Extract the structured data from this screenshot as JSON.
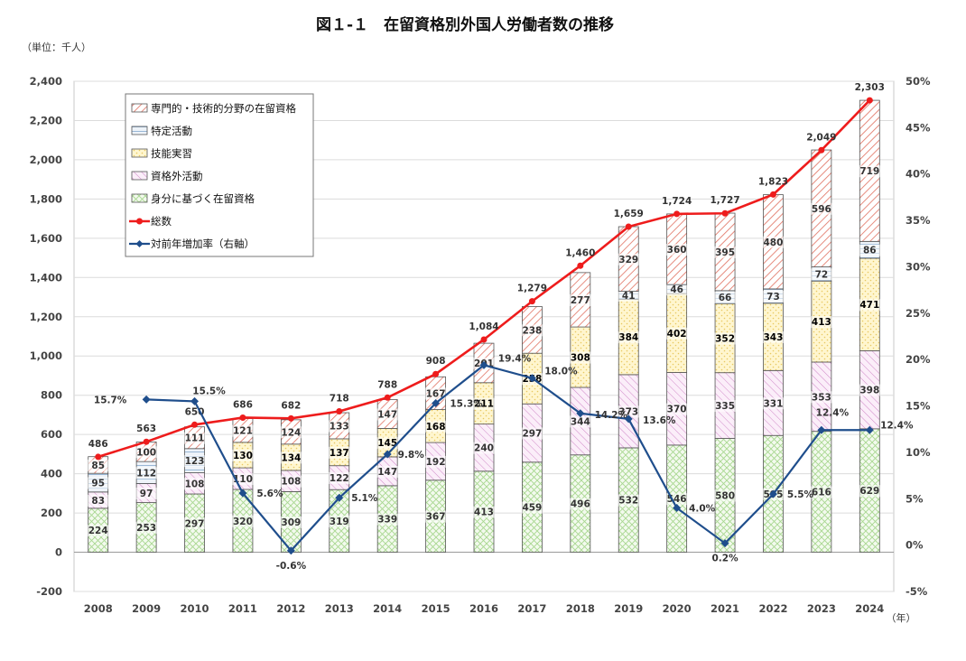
{
  "title": "図１-１　在留資格別外国人労働者数の推移",
  "unit_label": "（単位：千人）",
  "year_unit": "（年）",
  "colors": {
    "professional": "#e07060",
    "designated": "#7aa0c8",
    "trainee": "#e8c860",
    "outside": "#d088c8",
    "status": "#a8d890",
    "total_line": "#ee1c1c",
    "rate_line": "#1f4e8c"
  },
  "chart_data": {
    "type": "bar",
    "categories": [
      "2008",
      "2009",
      "2010",
      "2011",
      "2012",
      "2013",
      "2014",
      "2015",
      "2016",
      "2017",
      "2018",
      "2019",
      "2020",
      "2021",
      "2022",
      "2023",
      "2024"
    ],
    "y_left": {
      "min": -200,
      "max": 2400,
      "step": 200
    },
    "y_right": {
      "min": -5,
      "max": 50,
      "step": 5
    },
    "y_left_ticks": [
      "-200",
      "0",
      "200",
      "400",
      "600",
      "800",
      "1,000",
      "1,200",
      "1,400",
      "1,600",
      "1,800",
      "2,000",
      "2,200",
      "2,400"
    ],
    "y_right_ticks": [
      "-5%",
      "0%",
      "5%",
      "10%",
      "15%",
      "20%",
      "25%",
      "30%",
      "35%",
      "40%",
      "45%",
      "50%"
    ],
    "series": [
      {
        "name": "身分に基づく在留資格",
        "key": "status",
        "values": [
          224,
          253,
          297,
          320,
          309,
          319,
          339,
          367,
          413,
          459,
          496,
          532,
          546,
          580,
          595,
          616,
          629
        ],
        "labels": [
          "224",
          "253",
          "297",
          "320",
          "309",
          "319",
          "339",
          "367",
          "413",
          "459",
          "496",
          "532",
          "546",
          "580",
          "595",
          "616",
          "629"
        ]
      },
      {
        "name": "資格外活動",
        "key": "outside",
        "values": [
          83,
          97,
          108,
          110,
          108,
          122,
          147,
          192,
          240,
          297,
          344,
          373,
          370,
          335,
          331,
          353,
          398
        ],
        "labels": [
          "83",
          "97",
          "108",
          "110",
          "108",
          "122",
          "147",
          "192",
          "240",
          "297",
          "344",
          "373",
          "370",
          "335",
          "331",
          "353",
          "398"
        ]
      },
      {
        "name": "技能実習",
        "key": "trainee",
        "values": [
          0,
          0,
          0,
          130,
          134,
          137,
          145,
          168,
          211,
          258,
          308,
          384,
          402,
          352,
          343,
          413,
          471
        ],
        "labels": [
          "",
          "",
          "",
          "130",
          "134",
          "137",
          "145",
          "168",
          "211",
          "258",
          "308",
          "384",
          "402",
          "352",
          "343",
          "413",
          "471"
        ]
      },
      {
        "name": "特定活動",
        "key": "designated",
        "values": [
          95,
          112,
          123,
          0,
          0,
          0,
          0,
          0,
          0,
          0,
          0,
          41,
          46,
          66,
          73,
          72,
          86
        ],
        "labels": [
          "95",
          "112",
          "123",
          "",
          "",
          "",
          "",
          "",
          "",
          "",
          "",
          "41",
          "46",
          "66",
          "73",
          "72",
          "86"
        ]
      },
      {
        "name": "専門的・技術的分野の在留資格",
        "key": "professional",
        "values": [
          85,
          100,
          111,
          121,
          124,
          133,
          147,
          167,
          201,
          238,
          277,
          329,
          360,
          395,
          480,
          596,
          719
        ],
        "labels": [
          "85",
          "100",
          "111",
          "121",
          "124",
          "133",
          "147",
          "167",
          "201",
          "238",
          "277",
          "329",
          "360",
          "395",
          "480",
          "596",
          "719"
        ]
      }
    ],
    "totals": {
      "name": "総数",
      "values": [
        486,
        563,
        650,
        686,
        682,
        718,
        788,
        908,
        1084,
        1279,
        1460,
        1659,
        1724,
        1727,
        1823,
        2049,
        2303
      ],
      "labels": [
        "486",
        "563",
        "650",
        "686",
        "682",
        "718",
        "788",
        "908",
        "1,084",
        "1,279",
        "1,460",
        "1,659",
        "1,724",
        "1,727",
        "1,823",
        "2,049",
        "2,303"
      ]
    },
    "growth_rate": {
      "name": "対前年増加率（右軸）",
      "values": [
        null,
        15.7,
        15.5,
        5.6,
        -0.6,
        5.1,
        9.8,
        15.3,
        19.4,
        18.0,
        14.2,
        13.6,
        4.0,
        0.2,
        5.5,
        12.4,
        12.4
      ],
      "labels": [
        "",
        "15.7%",
        "15.5%",
        "5.6%",
        "-0.6%",
        "5.1%",
        "9.8%",
        "15.3%",
        "19.4%",
        "18.0%",
        "14.2%",
        "13.6%",
        "4.0%",
        "0.2%",
        "5.5%",
        "12.4%",
        "12.4%"
      ]
    },
    "legend_order": [
      "専門的・技術的分野の在留資格",
      "特定活動",
      "技能実習",
      "資格外活動",
      "身分に基づく在留資格",
      "総数",
      "対前年増加率（右軸）"
    ],
    "legend_placement": "top-left"
  }
}
